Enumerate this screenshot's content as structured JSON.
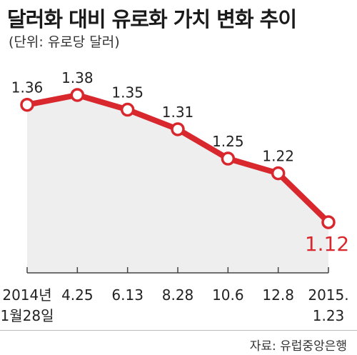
{
  "title": "달러화 대비 유로화 가치 변화 추이",
  "unit_note": "(단위: 유로당 달러)",
  "source": "자료: 유럽중앙은행",
  "colors": {
    "line": "#d9272e",
    "area": "#eeeeee",
    "axis": "#444444",
    "highlight_label": "#d9272e"
  },
  "chart_data": {
    "type": "line",
    "title": "달러화 대비 유로화 가치 변화 추이",
    "ylabel": "(단위: 유로당 달러)",
    "categories": [
      "2014년 1월28일",
      "4.25",
      "6.13",
      "8.28",
      "10.6",
      "12.8",
      "2015. 1.23"
    ],
    "category_lines": [
      [
        "2014년",
        "1월28일"
      ],
      [
        "4.25"
      ],
      [
        "6.13"
      ],
      [
        "8.28"
      ],
      [
        "10.6"
      ],
      [
        "12.8"
      ],
      [
        "2015.",
        "1.23"
      ]
    ],
    "series": [
      {
        "values": [
          1.36,
          1.38,
          1.35,
          1.31,
          1.25,
          1.22,
          1.12
        ]
      }
    ],
    "labels": [
      "1.36",
      "1.38",
      "1.35",
      "1.31",
      "1.25",
      "1.22",
      "1.12"
    ],
    "highlight_index": 6,
    "area_fill": true,
    "grid": false
  }
}
